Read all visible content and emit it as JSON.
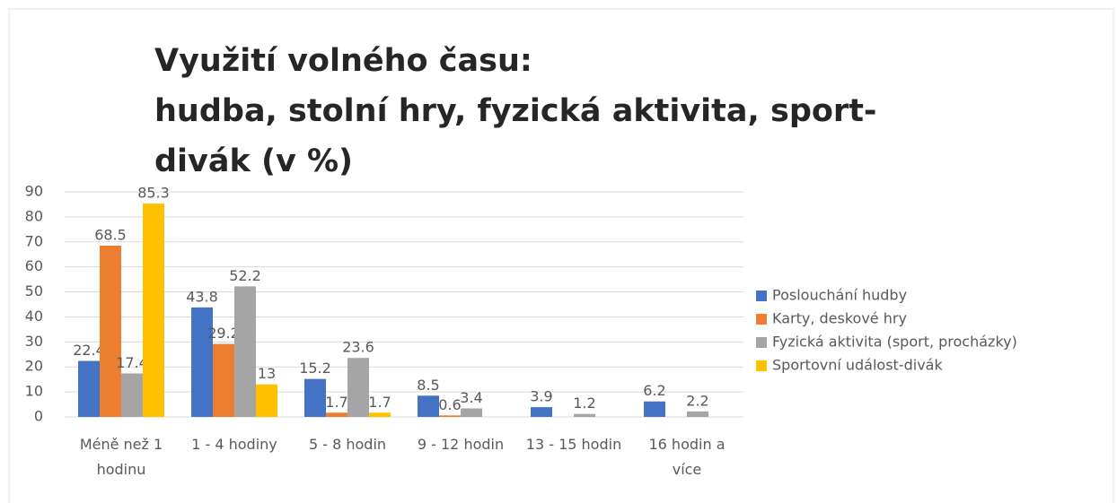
{
  "chart_data": {
    "type": "bar",
    "title": [
      "Využití volného času:",
      "hudba, stolní hry, fyzická aktivita, sport-divák (v %)"
    ],
    "categories": [
      "Méně než 1 hodinu",
      "1 - 4 hodiny",
      "5 - 8 hodin",
      "9 - 12 hodin",
      "13 - 15 hodin",
      "16 hodin a více"
    ],
    "series": [
      {
        "name": "Poslouchání hudby",
        "color": "#4472c4",
        "values": [
          22.4,
          43.8,
          15.2,
          8.5,
          3.9,
          6.2
        ]
      },
      {
        "name": "Karty, deskové hry",
        "color": "#ed7d31",
        "values": [
          68.5,
          29.2,
          1.7,
          0.6,
          null,
          null
        ]
      },
      {
        "name": "Fyzická aktivita (sport, procházky)",
        "color": "#a5a5a5",
        "values": [
          17.4,
          52.2,
          23.6,
          3.4,
          1.2,
          2.2
        ]
      },
      {
        "name": "Sportovní událost-divák",
        "color": "#ffc000",
        "values": [
          85.3,
          13,
          1.7,
          null,
          null,
          null
        ]
      }
    ],
    "ylim": [
      0,
      90
    ],
    "yticks": [
      0,
      10,
      20,
      30,
      40,
      50,
      60,
      70,
      80,
      90
    ],
    "grid": true,
    "legend": "right"
  }
}
